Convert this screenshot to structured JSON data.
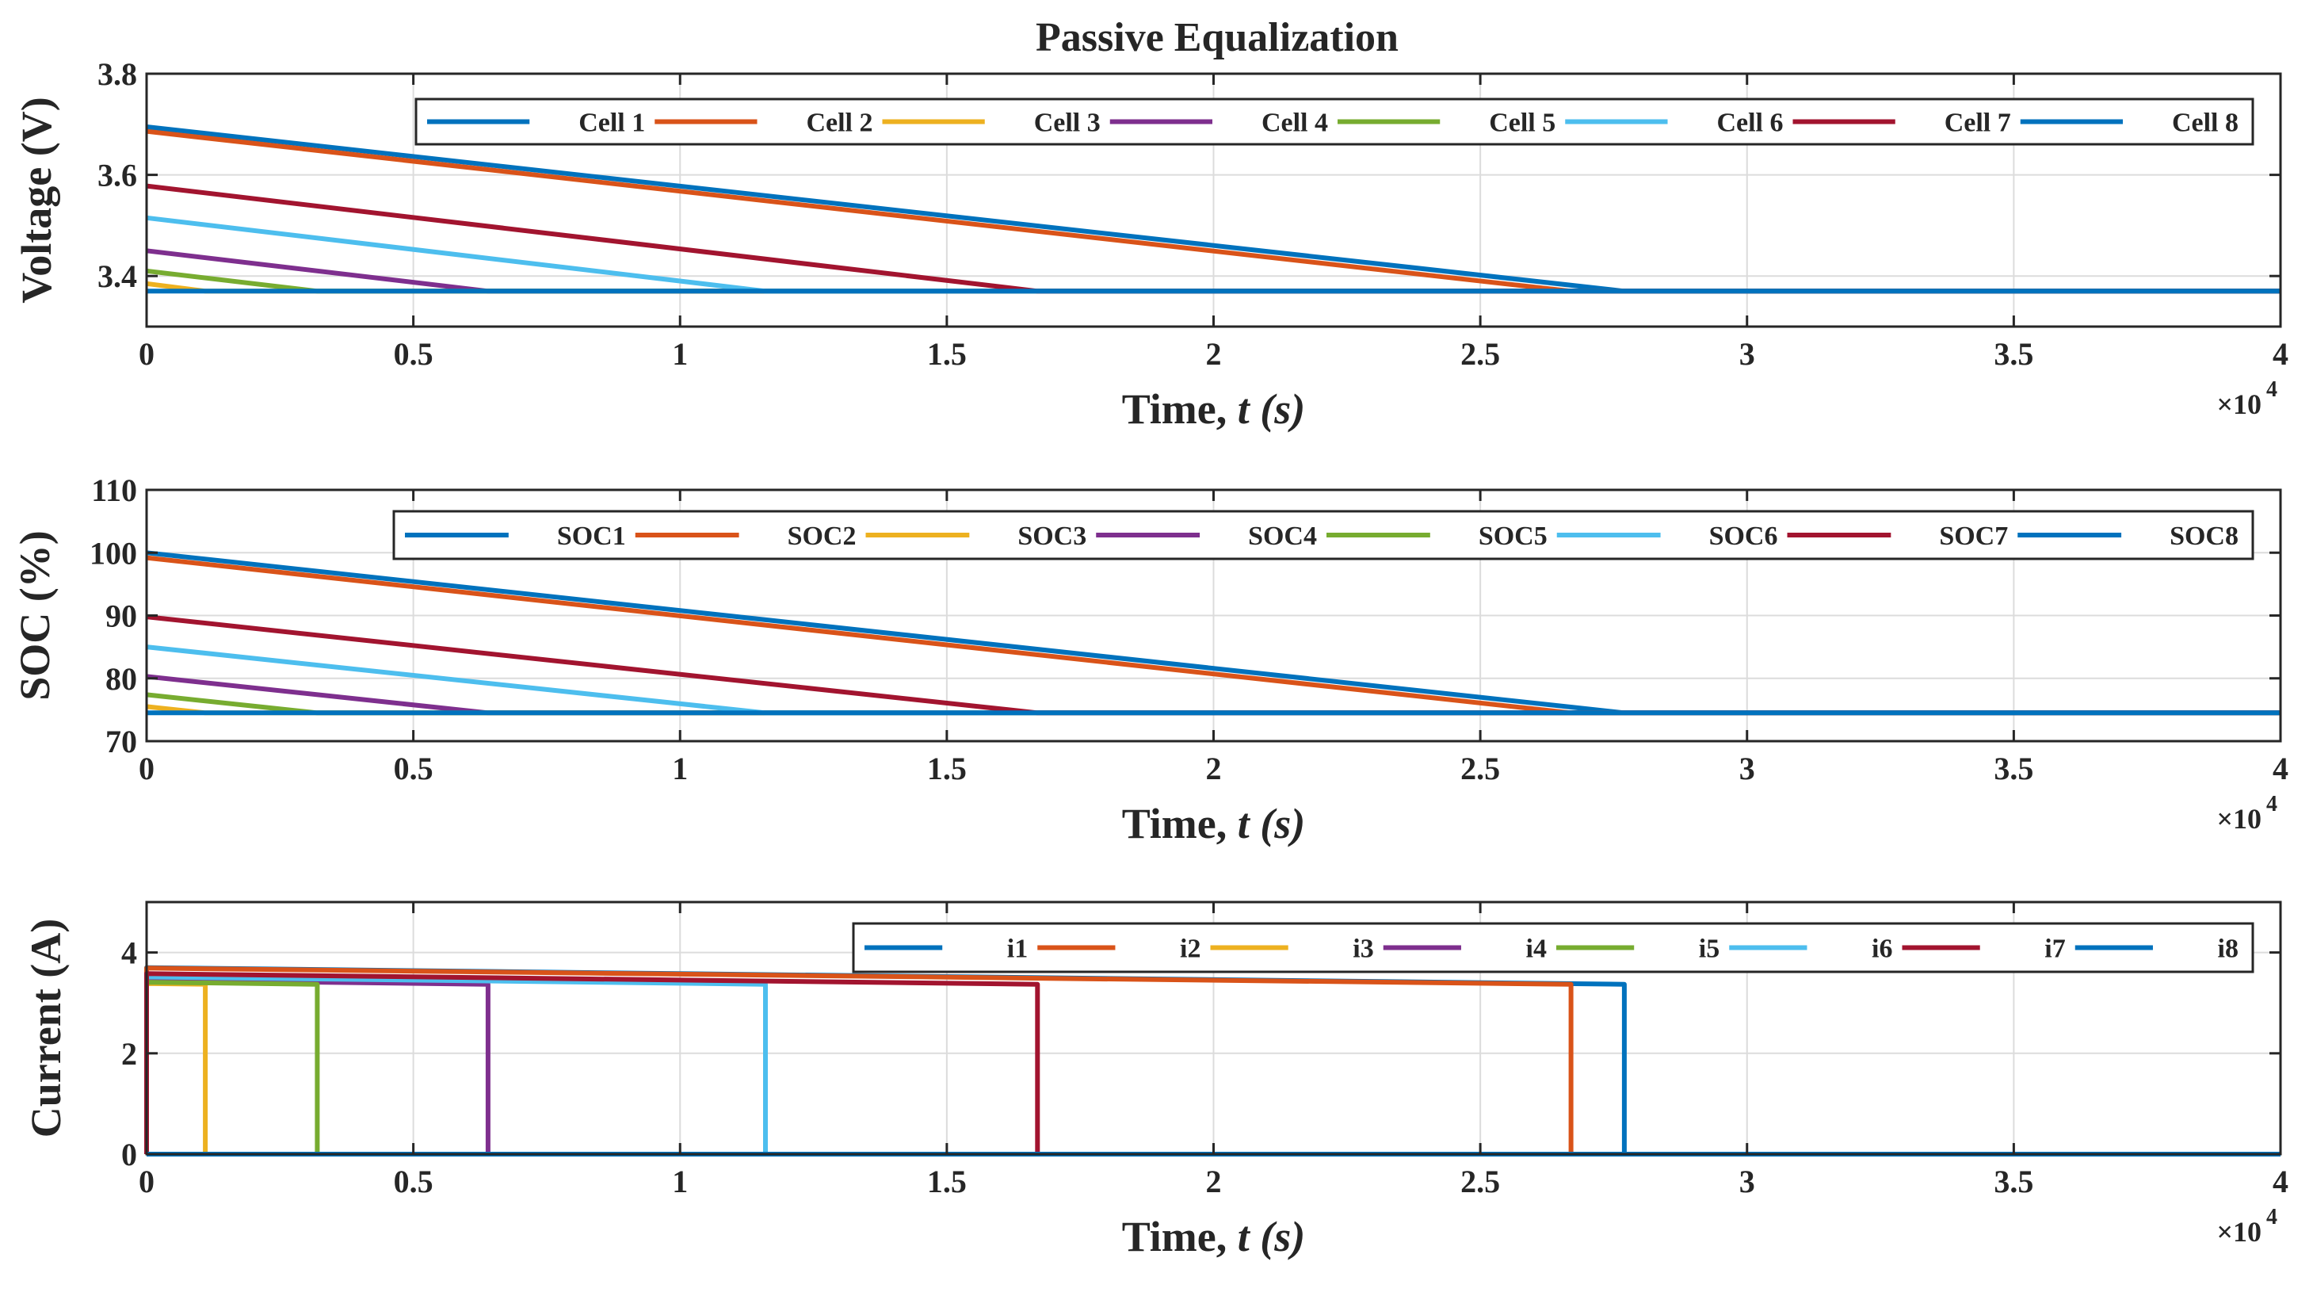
{
  "figure_title": "Passive Equalization",
  "chart_data": [
    {
      "type": "line",
      "title": "Passive Equalization",
      "xlabel_main": "Time, ",
      "xlabel_italic": "t (s)",
      "ylabel": "Voltage (V)",
      "xlim": [
        0,
        40000
      ],
      "ylim": [
        3.3,
        3.8
      ],
      "xticks": [
        0,
        5000,
        10000,
        15000,
        20000,
        25000,
        30000,
        35000,
        40000
      ],
      "xtick_labels": [
        "0",
        "0.5",
        "1",
        "1.5",
        "2",
        "2.5",
        "3",
        "3.5",
        "4"
      ],
      "yticks": [
        3.4,
        3.6,
        3.8
      ],
      "ytick_labels": [
        "3.4",
        "3.6",
        "3.8"
      ],
      "x_exponent_base": "×10",
      "x_exponent_power": "4",
      "grid": true,
      "legend_position": "top-right",
      "series": [
        {
          "name": "Cell 1",
          "color": "#0072BD",
          "x": [
            0,
            27700,
            40000
          ],
          "y": [
            3.695,
            3.37,
            3.37
          ]
        },
        {
          "name": "Cell 2",
          "color": "#D95319",
          "x": [
            0,
            26700,
            40000
          ],
          "y": [
            3.686,
            3.37,
            3.37
          ]
        },
        {
          "name": "Cell 3",
          "color": "#EDB120",
          "x": [
            0,
            1100,
            40000
          ],
          "y": [
            3.385,
            3.37,
            3.37
          ]
        },
        {
          "name": "Cell 4",
          "color": "#7E2F8E",
          "x": [
            0,
            6400,
            40000
          ],
          "y": [
            3.45,
            3.37,
            3.37
          ]
        },
        {
          "name": "Cell 5",
          "color": "#77AC30",
          "x": [
            0,
            3200,
            40000
          ],
          "y": [
            3.41,
            3.37,
            3.37
          ]
        },
        {
          "name": "Cell 6",
          "color": "#4DBEEE",
          "x": [
            0,
            11600,
            40000
          ],
          "y": [
            3.515,
            3.37,
            3.37
          ]
        },
        {
          "name": "Cell 7",
          "color": "#A2142F",
          "x": [
            0,
            16700,
            40000
          ],
          "y": [
            3.578,
            3.37,
            3.37
          ]
        },
        {
          "name": "Cell 8",
          "color": "#0072BD",
          "x": [
            0,
            40000
          ],
          "y": [
            3.37,
            3.37
          ]
        }
      ]
    },
    {
      "type": "line",
      "xlabel_main": "Time, ",
      "xlabel_italic": "t (s)",
      "ylabel": "SOC (%)",
      "xlim": [
        0,
        40000
      ],
      "ylim": [
        70,
        110
      ],
      "xticks": [
        0,
        5000,
        10000,
        15000,
        20000,
        25000,
        30000,
        35000,
        40000
      ],
      "xtick_labels": [
        "0",
        "0.5",
        "1",
        "1.5",
        "2",
        "2.5",
        "3",
        "3.5",
        "4"
      ],
      "yticks": [
        70,
        80,
        90,
        100,
        110
      ],
      "ytick_labels": [
        "70",
        "80",
        "90",
        "100",
        "110"
      ],
      "x_exponent_base": "×10",
      "x_exponent_power": "4",
      "grid": true,
      "legend_position": "top-right",
      "series": [
        {
          "name": "SOC1",
          "color": "#0072BD",
          "x": [
            0,
            27700,
            40000
          ],
          "y": [
            100,
            74.5,
            74.5
          ]
        },
        {
          "name": "SOC2",
          "color": "#D95319",
          "x": [
            0,
            26700,
            40000
          ],
          "y": [
            99.2,
            74.5,
            74.5
          ]
        },
        {
          "name": "SOC3",
          "color": "#EDB120",
          "x": [
            0,
            1100,
            40000
          ],
          "y": [
            75.5,
            74.5,
            74.5
          ]
        },
        {
          "name": "SOC4",
          "color": "#7E2F8E",
          "x": [
            0,
            6400,
            40000
          ],
          "y": [
            80.3,
            74.5,
            74.5
          ]
        },
        {
          "name": "SOC5",
          "color": "#77AC30",
          "x": [
            0,
            3200,
            40000
          ],
          "y": [
            77.4,
            74.5,
            74.5
          ]
        },
        {
          "name": "SOC6",
          "color": "#4DBEEE",
          "x": [
            0,
            11600,
            40000
          ],
          "y": [
            85,
            74.5,
            74.5
          ]
        },
        {
          "name": "SOC7",
          "color": "#A2142F",
          "x": [
            0,
            16700,
            40000
          ],
          "y": [
            89.8,
            74.5,
            74.5
          ]
        },
        {
          "name": "SOC8",
          "color": "#0072BD",
          "x": [
            0,
            40000
          ],
          "y": [
            74.5,
            74.5
          ]
        }
      ]
    },
    {
      "type": "line",
      "xlabel_main": "Time, ",
      "xlabel_italic": "t (s)",
      "ylabel": "Current (A)",
      "xlim": [
        0,
        40000
      ],
      "ylim": [
        0,
        5
      ],
      "xticks": [
        0,
        5000,
        10000,
        15000,
        20000,
        25000,
        30000,
        35000,
        40000
      ],
      "xtick_labels": [
        "0",
        "0.5",
        "1",
        "1.5",
        "2",
        "2.5",
        "3",
        "3.5",
        "4"
      ],
      "yticks": [
        0,
        2,
        4
      ],
      "ytick_labels": [
        "0",
        "2",
        "4"
      ],
      "x_exponent_base": "×10",
      "x_exponent_power": "4",
      "grid": true,
      "legend_position": "top-right",
      "series": [
        {
          "name": "i1",
          "color": "#0072BD",
          "x": [
            0,
            0,
            27700,
            27700,
            40000
          ],
          "y": [
            0,
            3.7,
            3.37,
            0,
            0
          ]
        },
        {
          "name": "i2",
          "color": "#D95319",
          "x": [
            0,
            0,
            26700,
            26700,
            40000
          ],
          "y": [
            0,
            3.69,
            3.37,
            0,
            0
          ]
        },
        {
          "name": "i3",
          "color": "#EDB120",
          "x": [
            0,
            0,
            1100,
            1100,
            40000
          ],
          "y": [
            0,
            3.385,
            3.37,
            0,
            0
          ]
        },
        {
          "name": "i4",
          "color": "#7E2F8E",
          "x": [
            0,
            0,
            6400,
            6400,
            40000
          ],
          "y": [
            0,
            3.45,
            3.37,
            0,
            0
          ]
        },
        {
          "name": "i5",
          "color": "#77AC30",
          "x": [
            0,
            0,
            3200,
            3200,
            40000
          ],
          "y": [
            0,
            3.41,
            3.37,
            0,
            0
          ]
        },
        {
          "name": "i6",
          "color": "#4DBEEE",
          "x": [
            0,
            0,
            11600,
            11600,
            40000
          ],
          "y": [
            0,
            3.515,
            3.37,
            0,
            0
          ]
        },
        {
          "name": "i7",
          "color": "#A2142F",
          "x": [
            0,
            0,
            16700,
            16700,
            40000
          ],
          "y": [
            0,
            3.58,
            3.37,
            0,
            0
          ]
        },
        {
          "name": "i8",
          "color": "#0072BD",
          "x": [
            0,
            40000
          ],
          "y": [
            0,
            0
          ]
        }
      ]
    }
  ]
}
